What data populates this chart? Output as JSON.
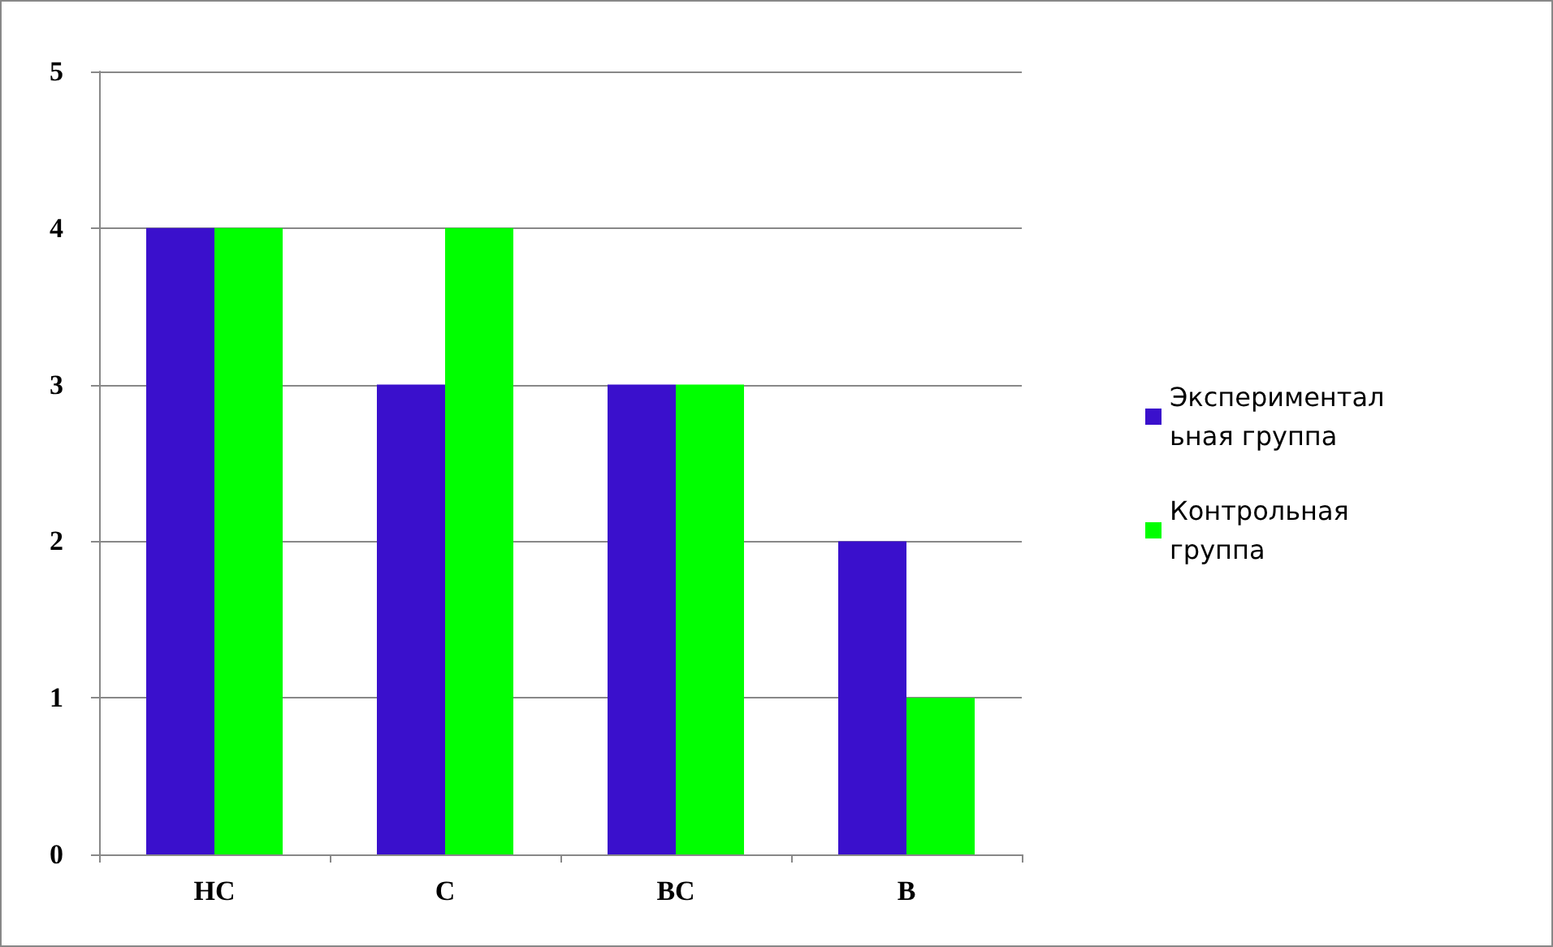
{
  "chart_data": {
    "type": "bar",
    "categories": [
      "НС",
      "С",
      "ВС",
      "В"
    ],
    "series": [
      {
        "name": "Экспериментальная группа",
        "color": "#3a10cc",
        "values": [
          4,
          3,
          3,
          2
        ]
      },
      {
        "name": "Контрольная  группа",
        "color": "#00ff00",
        "values": [
          4,
          4,
          3,
          1
        ]
      }
    ],
    "ylim": [
      0,
      5
    ],
    "yticks": [
      0,
      1,
      2,
      3,
      4,
      5
    ],
    "grid": "y",
    "legend": "right"
  }
}
